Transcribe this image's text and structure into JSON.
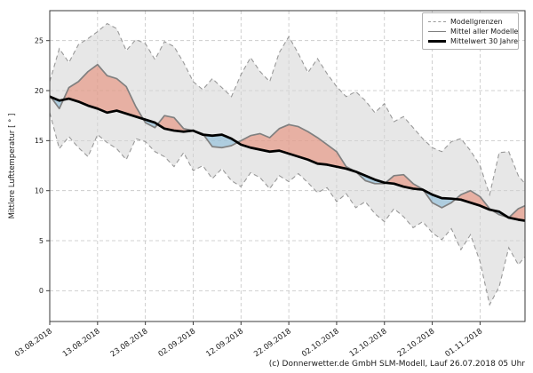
{
  "chart": {
    "ylabel": "Mittlere Lufttemperatur [ ° ]",
    "footer": "(c) Donnerwetter.de GmbH SLM-Modell, Lauf 26.07.2018 05 Uhr",
    "legend": [
      "Modellgrenzen",
      "Mittel aller Modelle",
      "Mittelwert 30 Jahre"
    ]
  },
  "colors": {
    "band_fill": "#d4d4d4",
    "band_edge": "#999999",
    "warm_fill": "#e8846b",
    "cold_fill": "#7fb8d9",
    "model_mean_line": "#808080",
    "climate_mean_line": "#000000",
    "grid": "#c4c4c4",
    "frame": "#3a3a3a",
    "text": "#1a1a1a"
  },
  "chart_data": {
    "type": "area",
    "title": "",
    "xlabel": "",
    "ylabel": "Mittlere Lufttemperatur [ ° ]",
    "x_unit": "days since 03.08.2018",
    "xlim_days": [
      0,
      99.4
    ],
    "ylim": [
      -3.1,
      28.0
    ],
    "grid": true,
    "legend_position": "upper right",
    "yticks": [
      0,
      5,
      10,
      15,
      20,
      25
    ],
    "xtick_positions_days": [
      0,
      10,
      20,
      30,
      40,
      50,
      60,
      70,
      80,
      90
    ],
    "xtick_labels": [
      "03.08.2018",
      "13.08.2018",
      "23.08.2018",
      "02.09.2018",
      "12.09.2018",
      "22.09.2018",
      "02.10.2018",
      "12.10.2018",
      "22.10.2018",
      "01.11.2018"
    ],
    "x": [
      0,
      2,
      4,
      6,
      8,
      10,
      12,
      14,
      16,
      18,
      20,
      22,
      24,
      26,
      28,
      30,
      32,
      34,
      36,
      38,
      40,
      42,
      44,
      46,
      48,
      50,
      52,
      54,
      56,
      58,
      60,
      62,
      64,
      66,
      68,
      70,
      72,
      74,
      76,
      78,
      80,
      82,
      84,
      86,
      88,
      90,
      92,
      94,
      96,
      98,
      99.4
    ],
    "series": [
      {
        "name": "Modellgrenzen (oberes Band)",
        "role": "upper_bound",
        "style": "dashed-gray",
        "values": [
          20.9,
          24.2,
          22.8,
          24.6,
          25.2,
          25.9,
          26.7,
          26.2,
          24.0,
          25.1,
          24.7,
          23.1,
          24.9,
          24.4,
          22.8,
          20.9,
          20.1,
          21.2,
          20.3,
          19.4,
          21.6,
          23.3,
          21.9,
          20.9,
          23.8,
          25.4,
          23.7,
          21.8,
          23.2,
          21.7,
          20.4,
          19.4,
          19.9,
          19.0,
          17.8,
          18.7,
          16.9,
          17.4,
          16.3,
          15.2,
          14.3,
          13.9,
          14.9,
          15.2,
          14.0,
          12.5,
          9.6,
          13.8,
          13.9,
          11.5,
          10.7
        ]
      },
      {
        "name": "Modellgrenzen (unteres Band)",
        "role": "lower_bound",
        "style": "dashed-gray",
        "values": [
          17.8,
          14.2,
          15.4,
          14.3,
          13.4,
          15.6,
          14.8,
          14.2,
          13.1,
          15.2,
          14.9,
          13.9,
          13.4,
          12.4,
          13.8,
          12.0,
          12.5,
          11.2,
          12.2,
          11.0,
          10.4,
          11.8,
          11.3,
          10.2,
          11.5,
          10.9,
          11.7,
          10.8,
          9.8,
          10.3,
          8.9,
          9.7,
          8.3,
          8.9,
          7.7,
          6.9,
          8.2,
          7.4,
          6.3,
          6.9,
          5.8,
          5.1,
          6.2,
          4.1,
          5.6,
          2.9,
          -1.4,
          0.4,
          4.3,
          2.6,
          3.4
        ]
      },
      {
        "name": "Mittel aller Modelle",
        "role": "model_mean",
        "style": "solid-gray",
        "values": [
          19.5,
          18.2,
          20.3,
          20.9,
          21.9,
          22.6,
          21.5,
          21.2,
          20.4,
          18.4,
          16.8,
          16.3,
          17.5,
          17.3,
          16.2,
          16.0,
          15.7,
          14.4,
          14.3,
          14.5,
          15.0,
          15.5,
          15.7,
          15.3,
          16.2,
          16.6,
          16.4,
          15.9,
          15.3,
          14.6,
          13.9,
          12.4,
          11.9,
          11.0,
          10.7,
          10.7,
          11.5,
          11.6,
          10.7,
          10.15,
          8.8,
          8.3,
          8.8,
          9.6,
          10.0,
          9.4,
          8.2,
          7.6,
          7.3,
          8.2,
          8.5
        ]
      },
      {
        "name": "Mittelwert 30 Jahre",
        "role": "climate_mean",
        "style": "thick-black",
        "values": [
          19.4,
          19.0,
          19.2,
          18.9,
          18.5,
          18.2,
          17.8,
          18.0,
          17.7,
          17.4,
          17.1,
          16.8,
          16.2,
          16.0,
          15.9,
          16.0,
          15.6,
          15.5,
          15.6,
          15.2,
          14.6,
          14.3,
          14.1,
          13.9,
          14.0,
          13.7,
          13.4,
          13.1,
          12.7,
          12.6,
          12.4,
          12.2,
          11.9,
          11.5,
          11.1,
          10.8,
          10.7,
          10.4,
          10.2,
          10.1,
          9.6,
          9.25,
          9.2,
          9.1,
          8.8,
          8.5,
          8.1,
          7.9,
          7.3,
          7.1,
          7.0
        ]
      }
    ],
    "fills": {
      "band_color": "#d4d4d4",
      "above_mean_color": "#e8846b",
      "below_mean_color": "#7fb8d9",
      "opacity": 0.55
    }
  }
}
